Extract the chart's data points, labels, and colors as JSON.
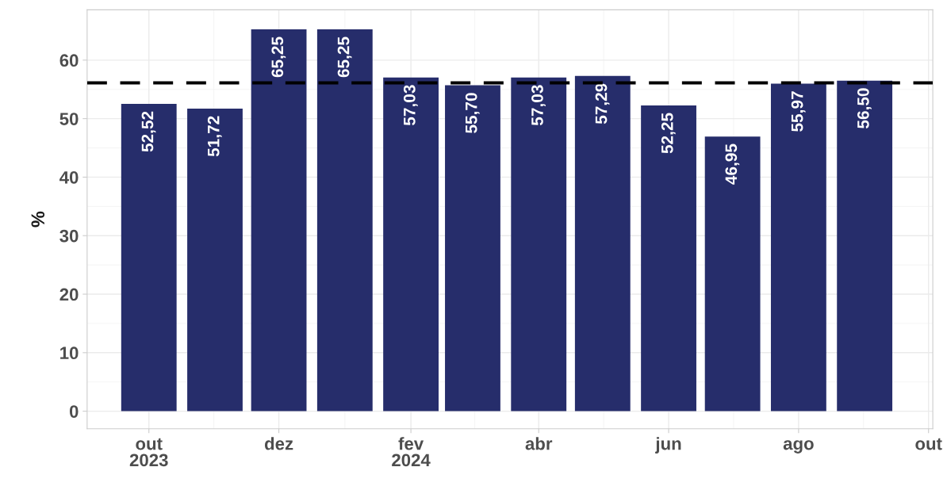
{
  "chart_data": {
    "type": "bar",
    "ylabel": "%",
    "x": [
      "2023-10",
      "2023-11",
      "2023-12",
      "2024-01",
      "2024-02",
      "2024-03",
      "2024-04",
      "2024-05",
      "2024-06",
      "2024-07",
      "2024-08",
      "2024-09"
    ],
    "series": [
      {
        "color": "#262d6b",
        "values": [
          52.52,
          51.72,
          65.25,
          65.25,
          57.03,
          55.7,
          57.03,
          57.29,
          52.25,
          46.95,
          55.97,
          56.5
        ]
      }
    ],
    "value_labels": [
      "52,52",
      "51,72",
      "65,25",
      "65,25",
      "57,03",
      "55,70",
      "57,03",
      "57,29",
      "52,25",
      "46,95",
      "55,97",
      "56,50"
    ],
    "xlim": [
      "2023-09-02",
      "2024-10-03"
    ],
    "xticks": [
      {
        "value": "2023-10",
        "label": "out\n2023"
      },
      {
        "value": "2023-12",
        "label": "dez"
      },
      {
        "value": "2024-02",
        "label": "fev\n2024"
      },
      {
        "value": "2024-04",
        "label": "abr"
      },
      {
        "value": "2024-06",
        "label": "jun"
      },
      {
        "value": "2024-08",
        "label": "ago"
      },
      {
        "value": "2024-10",
        "label": "out"
      }
    ],
    "ylim": [
      -3,
      68.6
    ],
    "yticks": [
      0,
      10,
      20,
      30,
      40,
      50,
      60
    ],
    "ref_lines": [
      {
        "axis": "y",
        "value": 56.12,
        "color": "#000000",
        "line_style": "dashed"
      }
    ],
    "grid": true
  }
}
